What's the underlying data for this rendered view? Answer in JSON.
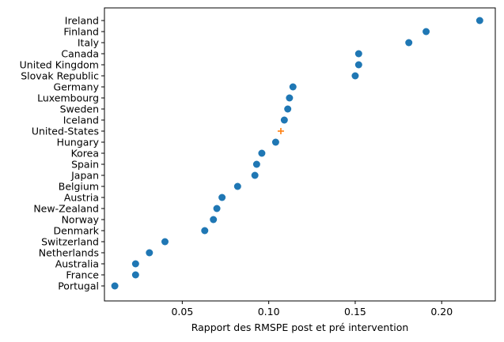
{
  "chart_data": {
    "type": "scatter",
    "title": "",
    "xlabel": "Rapport des RMSPE post et pré intervention",
    "ylabel": "",
    "xlim": [
      0.005,
      0.231
    ],
    "grid": false,
    "x_ticks": [
      0.05,
      0.1,
      0.15,
      0.2
    ],
    "x_tick_labels": [
      "0.05",
      "0.10",
      "0.15",
      "0.20"
    ],
    "categories": [
      "Ireland",
      "Finland",
      "Italy",
      "Canada",
      "United Kingdom",
      "Slovak Republic",
      "Germany",
      "Luxembourg",
      "Sweden",
      "Iceland",
      "United-States",
      "Hungary",
      "Korea",
      "Spain",
      "Japan",
      "Belgium",
      "Austria",
      "New-Zealand",
      "Norway",
      "Denmark",
      "Switzerland",
      "Netherlands",
      "Australia",
      "France",
      "Portugal"
    ],
    "series": [
      {
        "marker": "circle",
        "color": "#1f77b4",
        "points": [
          {
            "country": "Ireland",
            "x": 0.222
          },
          {
            "country": "Finland",
            "x": 0.191
          },
          {
            "country": "Italy",
            "x": 0.181
          },
          {
            "country": "Canada",
            "x": 0.152
          },
          {
            "country": "United Kingdom",
            "x": 0.152
          },
          {
            "country": "Slovak Republic",
            "x": 0.15
          },
          {
            "country": "Germany",
            "x": 0.114
          },
          {
            "country": "Luxembourg",
            "x": 0.112
          },
          {
            "country": "Sweden",
            "x": 0.111
          },
          {
            "country": "Iceland",
            "x": 0.109
          },
          {
            "country": "Hungary",
            "x": 0.104
          },
          {
            "country": "Korea",
            "x": 0.096
          },
          {
            "country": "Spain",
            "x": 0.093
          },
          {
            "country": "Japan",
            "x": 0.092
          },
          {
            "country": "Belgium",
            "x": 0.082
          },
          {
            "country": "Austria",
            "x": 0.073
          },
          {
            "country": "New-Zealand",
            "x": 0.07
          },
          {
            "country": "Norway",
            "x": 0.068
          },
          {
            "country": "Denmark",
            "x": 0.063
          },
          {
            "country": "Switzerland",
            "x": 0.04
          },
          {
            "country": "Netherlands",
            "x": 0.031
          },
          {
            "country": "Australia",
            "x": 0.023
          },
          {
            "country": "France",
            "x": 0.023
          },
          {
            "country": "Portugal",
            "x": 0.011
          }
        ]
      },
      {
        "marker": "plus",
        "color": "#ff7f0e",
        "points": [
          {
            "country": "United-States",
            "x": 0.107
          }
        ]
      }
    ]
  }
}
